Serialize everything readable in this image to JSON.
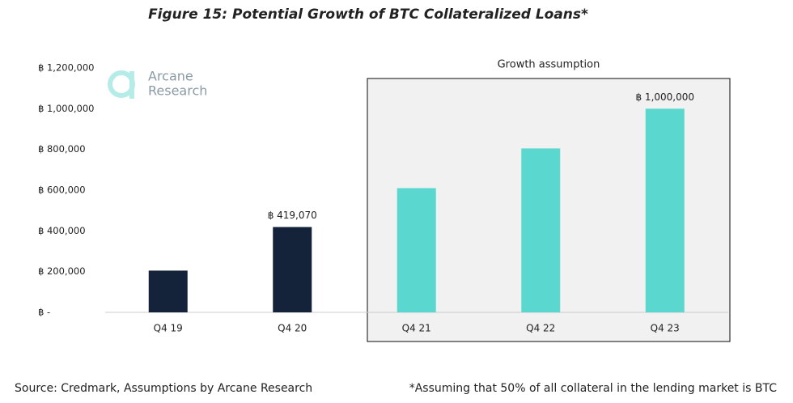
{
  "chart_data": {
    "type": "bar",
    "title": "Figure 15: Potential Growth of BTC Collateralized Loans*",
    "categories": [
      "Q4 19",
      "Q4 20",
      "Q4 21",
      "Q4 22",
      "Q4 23"
    ],
    "values": [
      205000,
      419070,
      610000,
      805000,
      1000000
    ],
    "value_labels": [
      null,
      "฿ 419,070",
      null,
      null,
      "฿ 1,000,000"
    ],
    "colors": [
      "#14233a",
      "#14233a",
      "#5ad8d0",
      "#5ad8d0",
      "#5ad8d0"
    ],
    "ylim": [
      0,
      1200000
    ],
    "yticks": [
      {
        "value": 0,
        "label": "฿ -"
      },
      {
        "value": 200000,
        "label": "฿ 200,000"
      },
      {
        "value": 400000,
        "label": "฿ 400,000"
      },
      {
        "value": 600000,
        "label": "฿ 600,000"
      },
      {
        "value": 800000,
        "label": "฿ 800,000"
      },
      {
        "value": 1000000,
        "label": "฿ 1,000,000"
      },
      {
        "value": 1200000,
        "label": "฿ 1,200,000"
      }
    ],
    "grid": false,
    "annotation": "Growth assumption",
    "watermark": [
      "Arcane",
      "Research"
    ],
    "source": "Source: Credmark, Assumptions by Arcane Research",
    "footnote": "*Assuming that 50% of all collateral in the lending market is BTC"
  }
}
